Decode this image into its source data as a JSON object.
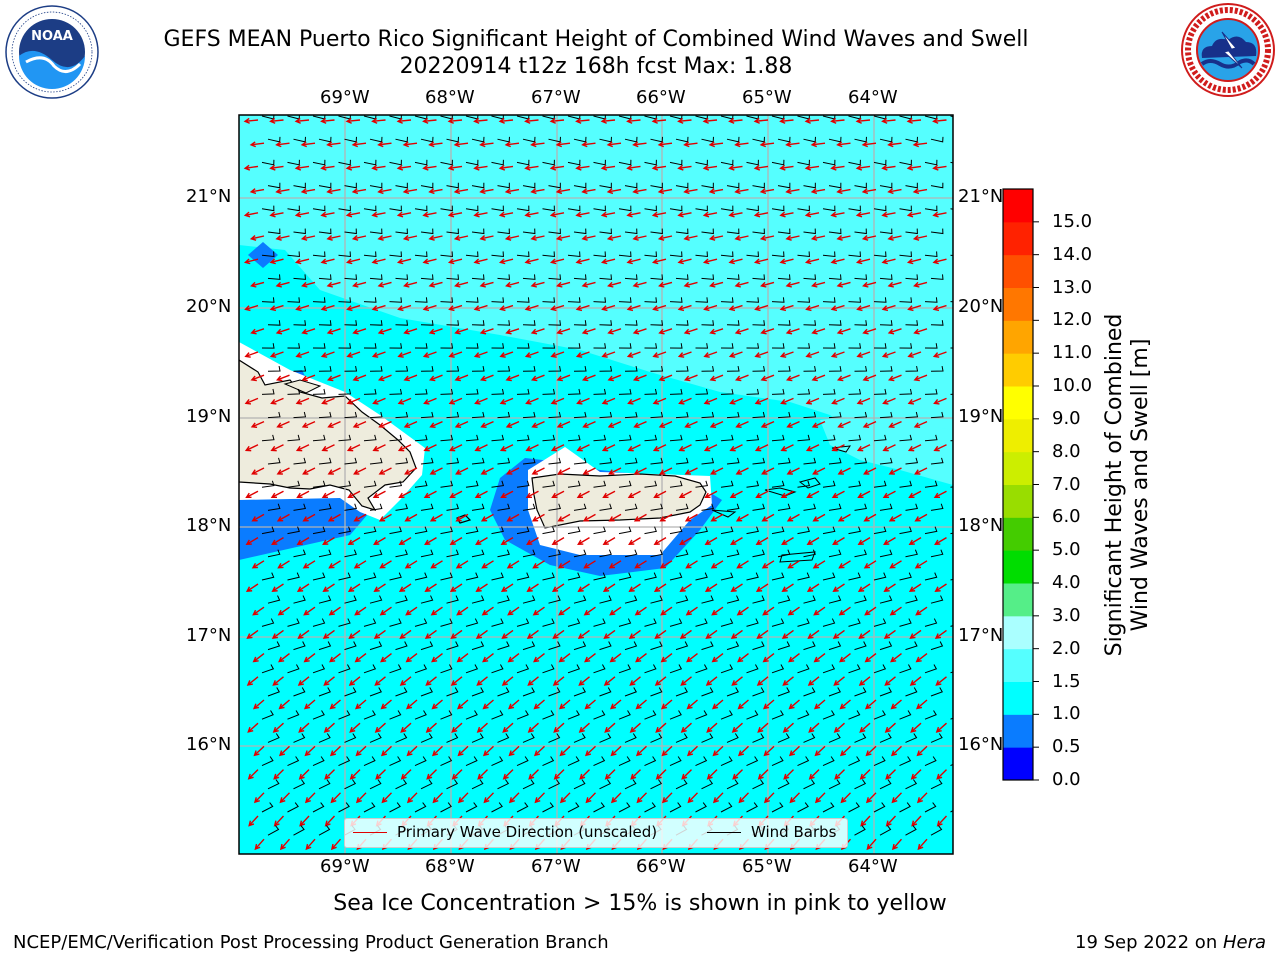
{
  "title": {
    "line1": "GEFS MEAN Puerto Rico Significant Height of Combined Wind Waves and Swell",
    "line2": "20220914 t12z 168h fcst   Max: 1.88"
  },
  "logos": {
    "left": {
      "name": "NOAA",
      "ring_text": "NATIONAL OCEANIC AND ATMOSPHERIC ADMINISTRATION · U.S. DEPARTMENT OF COMMERCE"
    },
    "right": {
      "name": "NATIONAL WEATHER SERVICE"
    }
  },
  "map": {
    "lon_labels": [
      "69°W",
      "68°W",
      "67°W",
      "66°W",
      "65°W",
      "64°W"
    ],
    "lat_labels": [
      "21°N",
      "20°N",
      "19°N",
      "18°N",
      "17°N",
      "16°N"
    ],
    "ocean_color": "#00ffff",
    "land_color": "#eeecdd",
    "wave_arrow_color": "#e00000",
    "barb_color": "#000000"
  },
  "legend": {
    "wave_label": "Primary Wave Direction (unscaled)",
    "barb_label": "Wind Barbs"
  },
  "colorbar": {
    "label_line1": "Significant Height of Combined",
    "label_line2": "Wind Waves and Swell [m]",
    "ticks": [
      "0.0",
      "0.5",
      "1.0",
      "1.5",
      "2.0",
      "3.0",
      "4.0",
      "5.0",
      "6.0",
      "7.0",
      "8.0",
      "9.0",
      "10.0",
      "11.0",
      "12.0",
      "13.0",
      "14.0",
      "15.0"
    ],
    "colors": [
      "#0000ff",
      "#0a7cff",
      "#00ffff",
      "#55ffff",
      "#aaffff",
      "#55ee88",
      "#00dd00",
      "#44cc00",
      "#99dd00",
      "#ccee00",
      "#eeee00",
      "#ffff00",
      "#ffcc00",
      "#ffa500",
      "#ff7700",
      "#ff5000",
      "#ff2200",
      "#ff0000"
    ]
  },
  "footer": {
    "note": "Sea Ice Concentration > 15% is shown in pink to yellow",
    "left": "NCEP/EMC/Verification Post Processing Product Generation Branch",
    "right_prefix": "19 Sep 2022 on ",
    "right_host": "Hera"
  }
}
